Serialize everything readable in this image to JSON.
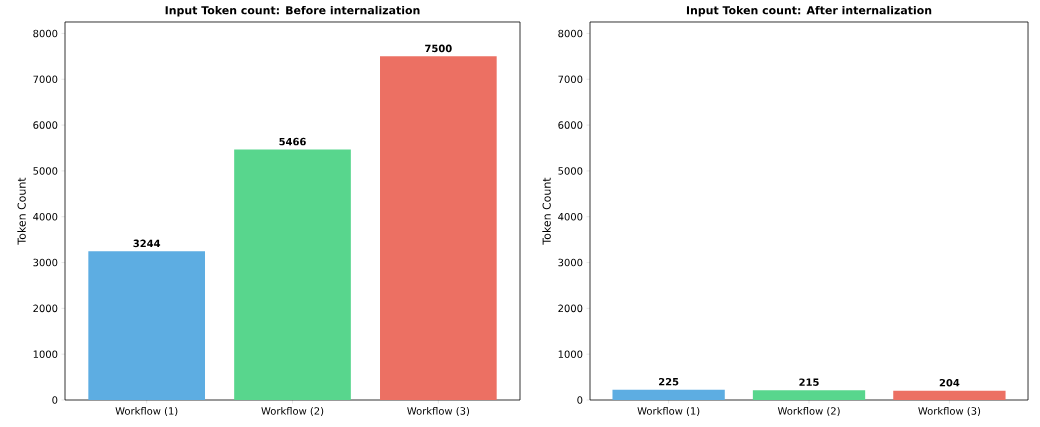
{
  "chart_data": [
    {
      "type": "bar",
      "title": "Input Token count: Before internalization",
      "ylabel": "Token Count",
      "categories": [
        "Workflow (1)",
        "Workflow (2)",
        "Workflow (3)"
      ],
      "values": [
        3244,
        5466,
        7500
      ],
      "colors": [
        "#5dade2",
        "#58d68d",
        "#ec7063"
      ],
      "ylim": [
        0,
        8250
      ],
      "yticks": [
        0,
        1000,
        2000,
        3000,
        4000,
        5000,
        6000,
        7000,
        8000
      ],
      "data_labels": true
    },
    {
      "type": "bar",
      "title": "Input Token count: After internalization",
      "ylabel": "Token Count",
      "categories": [
        "Workflow (1)",
        "Workflow (2)",
        "Workflow (3)"
      ],
      "values": [
        225,
        215,
        204
      ],
      "colors": [
        "#5dade2",
        "#58d68d",
        "#ec7063"
      ],
      "ylim": [
        0,
        8250
      ],
      "yticks": [
        0,
        1000,
        2000,
        3000,
        4000,
        5000,
        6000,
        7000,
        8000
      ],
      "data_labels": true
    }
  ]
}
